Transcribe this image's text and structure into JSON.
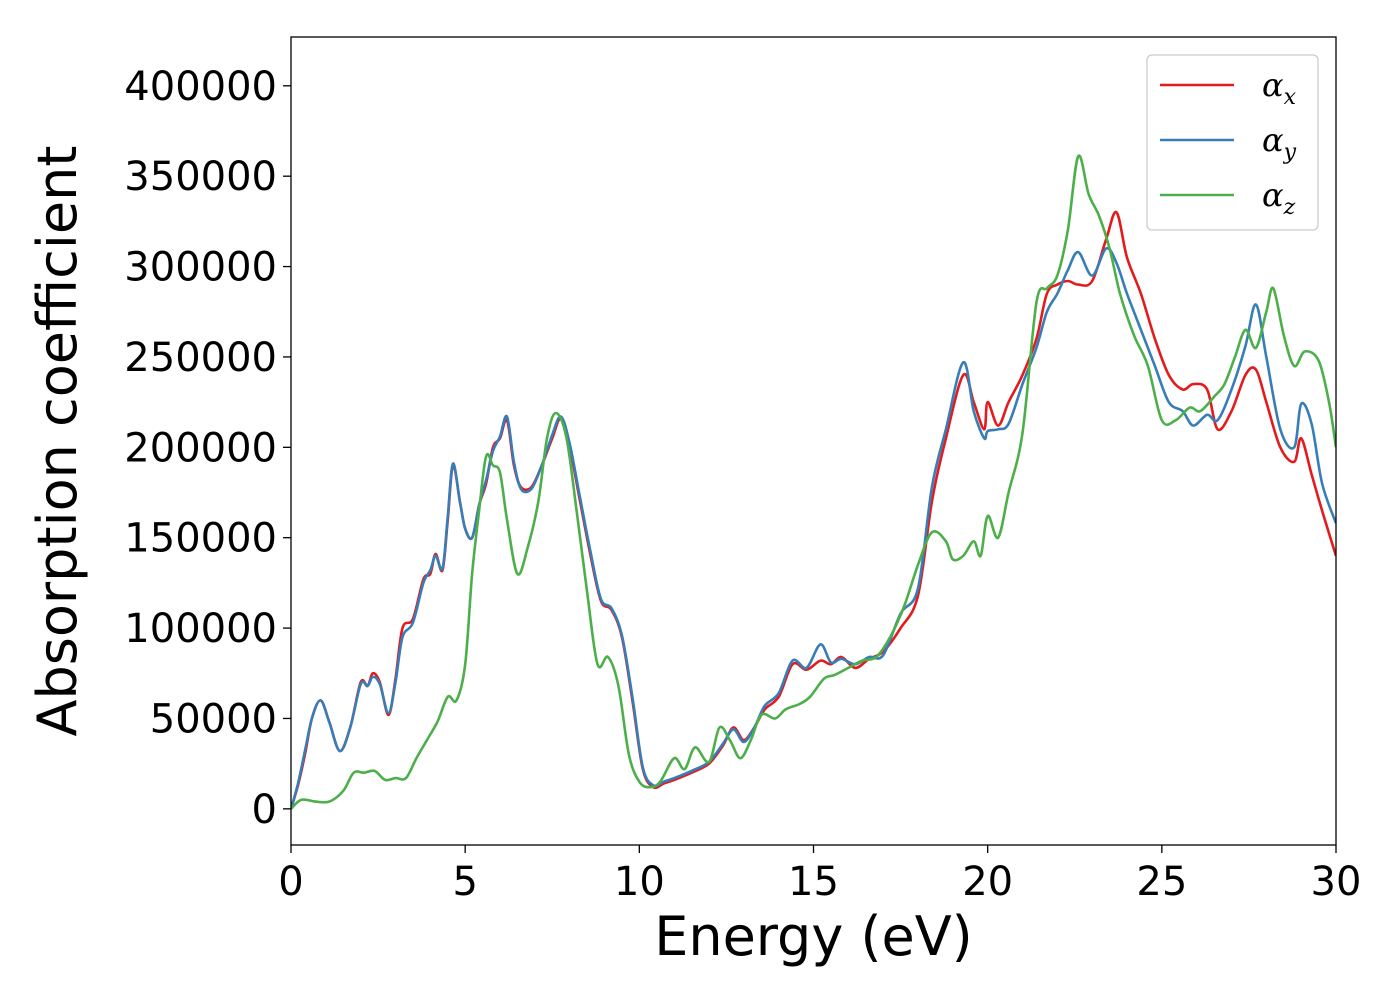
{
  "chart_data": {
    "type": "line",
    "xlabel": "Energy (eV)",
    "ylabel": "Absorption coefficient",
    "xlim": [
      0,
      30
    ],
    "ylim": [
      -20000,
      427000
    ],
    "xticks": [
      0,
      5,
      10,
      15,
      20,
      25,
      30
    ],
    "yticks": [
      0,
      50000,
      100000,
      150000,
      200000,
      250000,
      300000,
      350000,
      400000
    ],
    "grid": false,
    "legend": "top-right",
    "series": [
      {
        "name": "α_x",
        "symbol": "α",
        "subscript": "x",
        "color": "#e41a1c",
        "points": [
          [
            0,
            0
          ],
          [
            0.2,
            13000
          ],
          [
            0.4,
            30000
          ],
          [
            0.6,
            50000
          ],
          [
            0.85,
            60000
          ],
          [
            1.1,
            48000
          ],
          [
            1.4,
            32000
          ],
          [
            1.7,
            45000
          ],
          [
            2.0,
            70000
          ],
          [
            2.2,
            68000
          ],
          [
            2.35,
            75000
          ],
          [
            2.55,
            70000
          ],
          [
            2.8,
            52000
          ],
          [
            3.0,
            72000
          ],
          [
            3.2,
            100000
          ],
          [
            3.5,
            105000
          ],
          [
            3.8,
            127000
          ],
          [
            4.0,
            130000
          ],
          [
            4.15,
            141000
          ],
          [
            4.35,
            132000
          ],
          [
            4.5,
            160000
          ],
          [
            4.65,
            190000
          ],
          [
            4.85,
            170000
          ],
          [
            5.0,
            155000
          ],
          [
            5.2,
            150000
          ],
          [
            5.4,
            168000
          ],
          [
            5.6,
            180000
          ],
          [
            5.8,
            200000
          ],
          [
            6.0,
            205000
          ],
          [
            6.2,
            215000
          ],
          [
            6.4,
            190000
          ],
          [
            6.6,
            178000
          ],
          [
            6.9,
            178000
          ],
          [
            7.2,
            190000
          ],
          [
            7.5,
            205000
          ],
          [
            7.75,
            216000
          ],
          [
            8.0,
            200000
          ],
          [
            8.3,
            170000
          ],
          [
            8.6,
            140000
          ],
          [
            8.9,
            115000
          ],
          [
            9.2,
            110000
          ],
          [
            9.5,
            95000
          ],
          [
            9.8,
            60000
          ],
          [
            10.1,
            22000
          ],
          [
            10.4,
            12000
          ],
          [
            10.7,
            14000
          ],
          [
            11.0,
            16000
          ],
          [
            11.5,
            20000
          ],
          [
            12.0,
            25000
          ],
          [
            12.4,
            35000
          ],
          [
            12.7,
            45000
          ],
          [
            13.0,
            38000
          ],
          [
            13.3,
            45000
          ],
          [
            13.6,
            55000
          ],
          [
            14.0,
            62000
          ],
          [
            14.4,
            80000
          ],
          [
            14.8,
            77000
          ],
          [
            15.2,
            82000
          ],
          [
            15.5,
            80000
          ],
          [
            15.8,
            84000
          ],
          [
            16.2,
            78000
          ],
          [
            16.6,
            83000
          ],
          [
            17.0,
            87000
          ],
          [
            17.5,
            100000
          ],
          [
            18.0,
            118000
          ],
          [
            18.4,
            170000
          ],
          [
            18.8,
            205000
          ],
          [
            19.3,
            240000
          ],
          [
            19.6,
            225000
          ],
          [
            19.9,
            210000
          ],
          [
            20.0,
            225000
          ],
          [
            20.3,
            212000
          ],
          [
            20.6,
            225000
          ],
          [
            21.0,
            240000
          ],
          [
            21.4,
            260000
          ],
          [
            21.7,
            285000
          ],
          [
            22.0,
            290000
          ],
          [
            22.3,
            292000
          ],
          [
            22.6,
            290000
          ],
          [
            23.0,
            292000
          ],
          [
            23.4,
            315000
          ],
          [
            23.7,
            330000
          ],
          [
            24.0,
            305000
          ],
          [
            24.4,
            285000
          ],
          [
            24.8,
            260000
          ],
          [
            25.2,
            240000
          ],
          [
            25.6,
            232000
          ],
          [
            25.9,
            235000
          ],
          [
            26.3,
            232000
          ],
          [
            26.6,
            210000
          ],
          [
            27.0,
            220000
          ],
          [
            27.4,
            240000
          ],
          [
            27.7,
            243000
          ],
          [
            28.0,
            225000
          ],
          [
            28.4,
            200000
          ],
          [
            28.8,
            192000
          ],
          [
            29.0,
            205000
          ],
          [
            29.3,
            185000
          ],
          [
            29.6,
            165000
          ],
          [
            30.0,
            140000
          ]
        ]
      },
      {
        "name": "α_y",
        "symbol": "α",
        "subscript": "y",
        "color": "#377eb8",
        "points": [
          [
            0,
            0
          ],
          [
            0.2,
            14000
          ],
          [
            0.4,
            32000
          ],
          [
            0.6,
            50000
          ],
          [
            0.85,
            60000
          ],
          [
            1.1,
            48000
          ],
          [
            1.4,
            32000
          ],
          [
            1.7,
            45000
          ],
          [
            2.0,
            69000
          ],
          [
            2.2,
            68000
          ],
          [
            2.35,
            73000
          ],
          [
            2.55,
            69000
          ],
          [
            2.8,
            53000
          ],
          [
            3.0,
            70000
          ],
          [
            3.2,
            95000
          ],
          [
            3.5,
            103000
          ],
          [
            3.8,
            125000
          ],
          [
            4.0,
            132000
          ],
          [
            4.15,
            140000
          ],
          [
            4.35,
            133000
          ],
          [
            4.5,
            162000
          ],
          [
            4.65,
            191000
          ],
          [
            4.85,
            170000
          ],
          [
            5.0,
            155000
          ],
          [
            5.2,
            150000
          ],
          [
            5.4,
            168000
          ],
          [
            5.6,
            182000
          ],
          [
            5.8,
            198000
          ],
          [
            6.0,
            206000
          ],
          [
            6.2,
            217000
          ],
          [
            6.4,
            192000
          ],
          [
            6.6,
            177000
          ],
          [
            6.9,
            177000
          ],
          [
            7.2,
            190000
          ],
          [
            7.5,
            207000
          ],
          [
            7.75,
            217000
          ],
          [
            8.0,
            202000
          ],
          [
            8.3,
            172000
          ],
          [
            8.6,
            142000
          ],
          [
            8.9,
            116000
          ],
          [
            9.2,
            111000
          ],
          [
            9.5,
            96000
          ],
          [
            9.8,
            62000
          ],
          [
            10.1,
            23000
          ],
          [
            10.4,
            13000
          ],
          [
            10.7,
            15000
          ],
          [
            11.0,
            17000
          ],
          [
            11.5,
            21000
          ],
          [
            12.0,
            26000
          ],
          [
            12.4,
            36000
          ],
          [
            12.7,
            44000
          ],
          [
            13.0,
            37000
          ],
          [
            13.3,
            45000
          ],
          [
            13.6,
            57000
          ],
          [
            14.0,
            64000
          ],
          [
            14.4,
            82000
          ],
          [
            14.8,
            78000
          ],
          [
            15.2,
            91000
          ],
          [
            15.5,
            81000
          ],
          [
            15.8,
            83000
          ],
          [
            16.2,
            80000
          ],
          [
            16.6,
            84000
          ],
          [
            17.0,
            85000
          ],
          [
            17.5,
            108000
          ],
          [
            18.0,
            122000
          ],
          [
            18.4,
            178000
          ],
          [
            18.8,
            210000
          ],
          [
            19.3,
            247000
          ],
          [
            19.6,
            220000
          ],
          [
            19.9,
            205000
          ],
          [
            20.0,
            209000
          ],
          [
            20.3,
            210000
          ],
          [
            20.6,
            213000
          ],
          [
            21.0,
            235000
          ],
          [
            21.4,
            255000
          ],
          [
            21.7,
            275000
          ],
          [
            22.0,
            285000
          ],
          [
            22.3,
            298000
          ],
          [
            22.6,
            308000
          ],
          [
            23.0,
            295000
          ],
          [
            23.4,
            310000
          ],
          [
            23.7,
            302000
          ],
          [
            24.0,
            285000
          ],
          [
            24.4,
            265000
          ],
          [
            24.8,
            245000
          ],
          [
            25.2,
            225000
          ],
          [
            25.6,
            220000
          ],
          [
            25.9,
            212000
          ],
          [
            26.3,
            218000
          ],
          [
            26.6,
            215000
          ],
          [
            27.0,
            232000
          ],
          [
            27.4,
            256000
          ],
          [
            27.7,
            279000
          ],
          [
            28.0,
            250000
          ],
          [
            28.4,
            210000
          ],
          [
            28.8,
            200000
          ],
          [
            29.0,
            224000
          ],
          [
            29.3,
            213000
          ],
          [
            29.6,
            180000
          ],
          [
            30.0,
            158000
          ]
        ]
      },
      {
        "name": "α_z",
        "symbol": "α",
        "subscript": "z",
        "color": "#4daf4a",
        "points": [
          [
            0,
            0
          ],
          [
            0.3,
            5000
          ],
          [
            0.7,
            4000
          ],
          [
            1.1,
            4000
          ],
          [
            1.5,
            10000
          ],
          [
            1.8,
            20000
          ],
          [
            2.1,
            20000
          ],
          [
            2.4,
            21000
          ],
          [
            2.7,
            16000
          ],
          [
            3.0,
            17000
          ],
          [
            3.3,
            17000
          ],
          [
            3.6,
            28000
          ],
          [
            3.9,
            38000
          ],
          [
            4.2,
            48000
          ],
          [
            4.5,
            62000
          ],
          [
            4.75,
            60000
          ],
          [
            5.0,
            80000
          ],
          [
            5.2,
            130000
          ],
          [
            5.4,
            165000
          ],
          [
            5.6,
            195000
          ],
          [
            5.8,
            190000
          ],
          [
            6.0,
            186000
          ],
          [
            6.2,
            160000
          ],
          [
            6.5,
            130000
          ],
          [
            6.8,
            145000
          ],
          [
            7.1,
            170000
          ],
          [
            7.35,
            205000
          ],
          [
            7.6,
            219000
          ],
          [
            7.9,
            206000
          ],
          [
            8.2,
            165000
          ],
          [
            8.5,
            120000
          ],
          [
            8.8,
            80000
          ],
          [
            9.1,
            84000
          ],
          [
            9.4,
            68000
          ],
          [
            9.7,
            30000
          ],
          [
            10.0,
            15000
          ],
          [
            10.3,
            12000
          ],
          [
            10.6,
            15000
          ],
          [
            11.0,
            28000
          ],
          [
            11.3,
            22000
          ],
          [
            11.6,
            34000
          ],
          [
            12.0,
            26000
          ],
          [
            12.3,
            45000
          ],
          [
            12.6,
            38000
          ],
          [
            12.9,
            28000
          ],
          [
            13.2,
            38000
          ],
          [
            13.5,
            52000
          ],
          [
            13.9,
            50000
          ],
          [
            14.2,
            55000
          ],
          [
            14.6,
            58000
          ],
          [
            14.9,
            62000
          ],
          [
            15.3,
            72000
          ],
          [
            15.6,
            74000
          ],
          [
            16.0,
            78000
          ],
          [
            16.4,
            82000
          ],
          [
            16.8,
            84000
          ],
          [
            17.2,
            95000
          ],
          [
            17.6,
            112000
          ],
          [
            18.0,
            135000
          ],
          [
            18.4,
            153000
          ],
          [
            18.8,
            148000
          ],
          [
            19.0,
            138000
          ],
          [
            19.3,
            140000
          ],
          [
            19.6,
            148000
          ],
          [
            19.8,
            140000
          ],
          [
            20.0,
            162000
          ],
          [
            20.3,
            150000
          ],
          [
            20.6,
            175000
          ],
          [
            21.0,
            208000
          ],
          [
            21.4,
            280000
          ],
          [
            21.7,
            288000
          ],
          [
            22.0,
            295000
          ],
          [
            22.3,
            320000
          ],
          [
            22.6,
            361000
          ],
          [
            22.9,
            340000
          ],
          [
            23.2,
            328000
          ],
          [
            23.5,
            310000
          ],
          [
            23.8,
            285000
          ],
          [
            24.2,
            262000
          ],
          [
            24.6,
            245000
          ],
          [
            25.0,
            215000
          ],
          [
            25.4,
            215000
          ],
          [
            25.8,
            222000
          ],
          [
            26.1,
            220000
          ],
          [
            26.5,
            228000
          ],
          [
            26.8,
            235000
          ],
          [
            27.1,
            250000
          ],
          [
            27.4,
            265000
          ],
          [
            27.7,
            255000
          ],
          [
            28.0,
            275000
          ],
          [
            28.2,
            288000
          ],
          [
            28.5,
            262000
          ],
          [
            28.8,
            245000
          ],
          [
            29.1,
            253000
          ],
          [
            29.5,
            248000
          ],
          [
            29.8,
            225000
          ],
          [
            30.0,
            200000
          ]
        ]
      }
    ]
  }
}
